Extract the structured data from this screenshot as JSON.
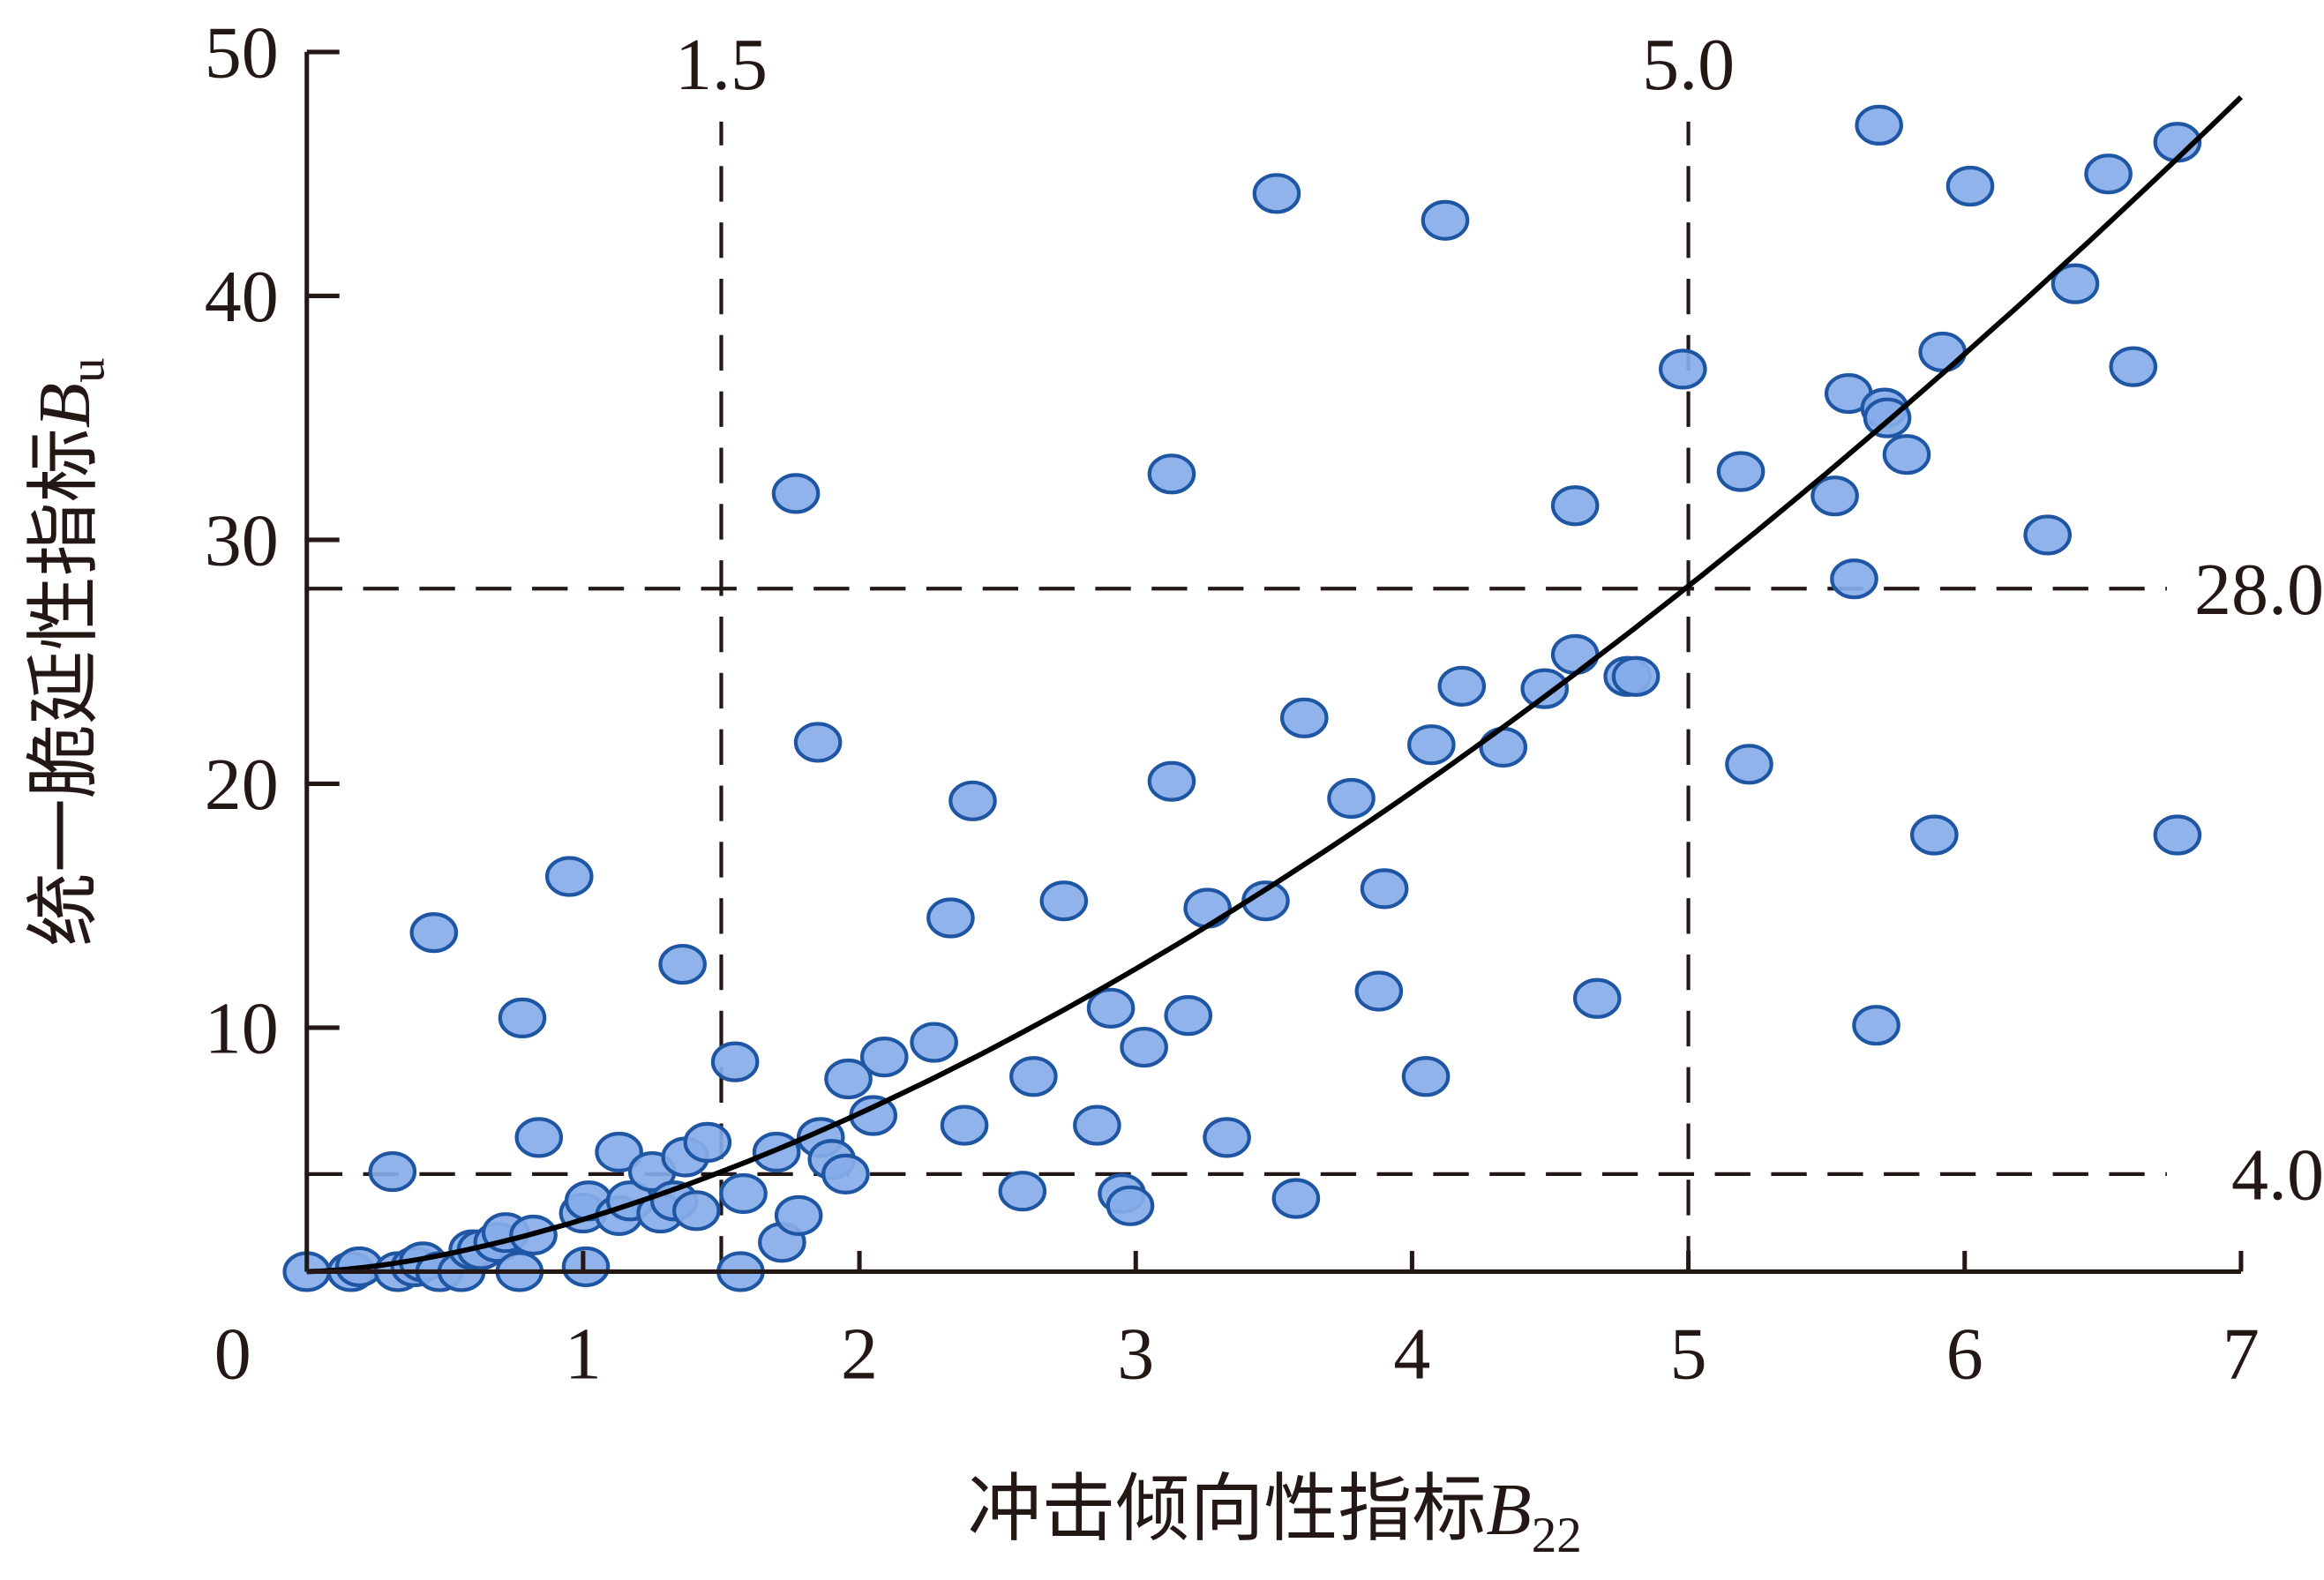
{
  "chart_data": {
    "type": "scatter",
    "title": "",
    "xlabel": "冲击倾向性指标",
    "xlabel_var": "B",
    "xlabel_sub": "22",
    "ylabel": "统一脆延性指标",
    "ylabel_var": "B",
    "ylabel_sub": "u",
    "xlim": [
      0,
      7
    ],
    "ylim": [
      0,
      50
    ],
    "xticks": [
      0,
      1,
      2,
      3,
      4,
      5,
      6,
      7
    ],
    "yticks": [
      10,
      20,
      30,
      40,
      50
    ],
    "x_origin_label": "0",
    "grid": false,
    "colors": {
      "point_fill": "#86ace8",
      "point_stroke": "#1f56a3",
      "line": "#000000",
      "axis": "#231815"
    },
    "reference_lines": [
      {
        "orientation": "vertical",
        "value": 1.5,
        "label": "1.5"
      },
      {
        "orientation": "vertical",
        "value": 5.0,
        "label": "5.0"
      },
      {
        "orientation": "horizontal",
        "value": 28.0,
        "label": "28.0"
      },
      {
        "orientation": "horizontal",
        "value": 4.0,
        "label": "4.0"
      }
    ],
    "fit_curve": {
      "form": "y = a*x^n",
      "a": 2.14,
      "n": 1.6
    },
    "points": [
      [
        0,
        0
      ],
      [
        0.16,
        0
      ],
      [
        0.19,
        0.2
      ],
      [
        0.31,
        4.1
      ],
      [
        0.33,
        0
      ],
      [
        0.39,
        0.2
      ],
      [
        0.42,
        0.4
      ],
      [
        0.46,
        13.9
      ],
      [
        0.48,
        0
      ],
      [
        0.56,
        0
      ],
      [
        0.6,
        0.9
      ],
      [
        0.63,
        0.9
      ],
      [
        0.69,
        1.2
      ],
      [
        0.72,
        1.6
      ],
      [
        0.77,
        0
      ],
      [
        0.78,
        10.4
      ],
      [
        0.82,
        1.5
      ],
      [
        0.84,
        5.5
      ],
      [
        0.95,
        16.2
      ],
      [
        1.0,
        2.4
      ],
      [
        1.01,
        0.2
      ],
      [
        1.02,
        2.9
      ],
      [
        1.13,
        2.3
      ],
      [
        1.13,
        4.9
      ],
      [
        1.17,
        2.9
      ],
      [
        1.25,
        4.1
      ],
      [
        1.28,
        2.4
      ],
      [
        1.33,
        2.9
      ],
      [
        1.36,
        12.6
      ],
      [
        1.37,
        4.7
      ],
      [
        1.41,
        2.5
      ],
      [
        1.45,
        5.3
      ],
      [
        1.55,
        8.6
      ],
      [
        1.57,
        0
      ],
      [
        1.58,
        3.2
      ],
      [
        1.7,
        4.9
      ],
      [
        1.72,
        1.2
      ],
      [
        1.77,
        31.9
      ],
      [
        1.78,
        2.3
      ],
      [
        1.85,
        21.7
      ],
      [
        1.86,
        5.5
      ],
      [
        1.9,
        4.6
      ],
      [
        1.95,
        4.0
      ],
      [
        1.96,
        7.9
      ],
      [
        2.05,
        6.4
      ],
      [
        2.09,
        8.8
      ],
      [
        2.27,
        9.4
      ],
      [
        2.33,
        14.5
      ],
      [
        2.38,
        6.0
      ],
      [
        2.41,
        19.3
      ],
      [
        2.59,
        3.3
      ],
      [
        2.63,
        8.0
      ],
      [
        2.74,
        15.2
      ],
      [
        2.86,
        6.0
      ],
      [
        2.91,
        10.8
      ],
      [
        2.95,
        3.2
      ],
      [
        2.98,
        2.7
      ],
      [
        3.03,
        9.2
      ],
      [
        3.13,
        32.7
      ],
      [
        3.13,
        20.1
      ],
      [
        3.19,
        10.5
      ],
      [
        3.26,
        14.9
      ],
      [
        3.33,
        5.5
      ],
      [
        3.47,
        15.2
      ],
      [
        3.51,
        44.2
      ],
      [
        3.58,
        3.0
      ],
      [
        3.61,
        22.7
      ],
      [
        3.78,
        19.4
      ],
      [
        3.88,
        11.5
      ],
      [
        3.9,
        15.7
      ],
      [
        4.05,
        8.0
      ],
      [
        4.07,
        21.6
      ],
      [
        4.12,
        43.1
      ],
      [
        4.18,
        24.0
      ],
      [
        4.33,
        21.5
      ],
      [
        4.48,
        23.9
      ],
      [
        4.59,
        25.3
      ],
      [
        4.59,
        31.4
      ],
      [
        4.67,
        11.2
      ],
      [
        4.78,
        24.4
      ],
      [
        4.81,
        24.4
      ],
      [
        4.98,
        37.0
      ],
      [
        5.19,
        32.8
      ],
      [
        5.22,
        20.8
      ],
      [
        5.53,
        31.8
      ],
      [
        5.58,
        36.0
      ],
      [
        5.6,
        28.4
      ],
      [
        5.68,
        10.1
      ],
      [
        5.69,
        47.0
      ],
      [
        5.71,
        35.4
      ],
      [
        5.72,
        35.0
      ],
      [
        5.79,
        33.5
      ],
      [
        5.89,
        17.9
      ],
      [
        5.92,
        37.7
      ],
      [
        6.02,
        44.5
      ],
      [
        6.3,
        30.2
      ],
      [
        6.4,
        40.5
      ],
      [
        6.52,
        45.0
      ],
      [
        6.61,
        37.1
      ],
      [
        6.77,
        17.9
      ],
      [
        6.77,
        46.3
      ]
    ]
  }
}
